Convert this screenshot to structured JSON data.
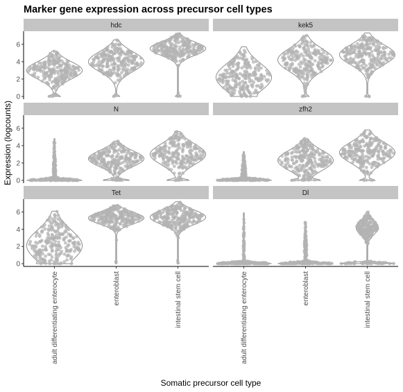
{
  "chart_data": {
    "type": "violin",
    "title": "Marker gene expression across precursor cell types",
    "xlabel": "Somatic precursor cell type",
    "ylabel": "Expression (logcounts)",
    "categories": [
      "adult differentiating enterocyte",
      "enteroblast",
      "intestinal stem cell"
    ],
    "ylim": [
      0,
      7.5
    ],
    "yticks": [
      0,
      2,
      4,
      6
    ],
    "facet_layout": {
      "rows": 3,
      "cols": 2,
      "free_y": false
    },
    "colors": {
      "outline": "#8c8c8c",
      "points": "#b3b3b3",
      "strip": "#c4c4c4"
    },
    "facets": [
      {
        "name": "hdc",
        "groups": [
          {
            "category": "adult differentiating enterocyte",
            "min": 0,
            "max": 5.2,
            "zeroFraction": 0.06,
            "peak": 3.0,
            "width": 0.3
          },
          {
            "category": "enteroblast",
            "min": 0,
            "max": 6.5,
            "zeroFraction": 0.04,
            "peak": 4.0,
            "width": 0.33
          },
          {
            "category": "intestinal stem cell",
            "min": 0,
            "max": 7.2,
            "zeroFraction": 0.03,
            "peak": 5.5,
            "width": 0.33
          }
        ]
      },
      {
        "name": "kek5",
        "groups": [
          {
            "category": "adult differentiating enterocyte",
            "min": 0,
            "max": 5.7,
            "zeroFraction": 0.03,
            "peak": 2.2,
            "width": 0.32
          },
          {
            "category": "enteroblast",
            "min": 0,
            "max": 7.0,
            "zeroFraction": 0.04,
            "peak": 4.2,
            "width": 0.33
          },
          {
            "category": "intestinal stem cell",
            "min": 0,
            "max": 7.3,
            "zeroFraction": 0.03,
            "peak": 4.8,
            "width": 0.33
          }
        ]
      },
      {
        "name": "N",
        "groups": [
          {
            "category": "adult differentiating enterocyte",
            "min": 0,
            "max": 4.8,
            "zeroFraction": 0.92,
            "peak": 0.8,
            "width": 0.05
          },
          {
            "category": "enteroblast",
            "min": 0,
            "max": 4.5,
            "zeroFraction": 0.15,
            "peak": 2.5,
            "width": 0.33
          },
          {
            "category": "intestinal stem cell",
            "min": 0,
            "max": 5.6,
            "zeroFraction": 0.12,
            "peak": 3.0,
            "width": 0.33
          }
        ]
      },
      {
        "name": "zfh2",
        "groups": [
          {
            "category": "adult differentiating enterocyte",
            "min": 0,
            "max": 3.3,
            "zeroFraction": 0.75,
            "peak": 0.8,
            "width": 0.06
          },
          {
            "category": "enteroblast",
            "min": 0,
            "max": 4.8,
            "zeroFraction": 0.12,
            "peak": 2.3,
            "width": 0.3
          },
          {
            "category": "intestinal stem cell",
            "min": 0,
            "max": 5.8,
            "zeroFraction": 0.08,
            "peak": 3.2,
            "width": 0.32
          }
        ]
      },
      {
        "name": "Tet",
        "groups": [
          {
            "category": "adult differentiating enterocyte",
            "min": 0,
            "max": 6.1,
            "zeroFraction": 0.04,
            "peak": 2.1,
            "width": 0.3
          },
          {
            "category": "enteroblast",
            "min": 0,
            "max": 6.8,
            "zeroFraction": 0.01,
            "peak": 5.3,
            "width": 0.33
          },
          {
            "category": "intestinal stem cell",
            "min": 0,
            "max": 7.2,
            "zeroFraction": 0.01,
            "peak": 5.4,
            "width": 0.33
          }
        ]
      },
      {
        "name": "Dl",
        "groups": [
          {
            "category": "adult differentiating enterocyte",
            "min": 0,
            "max": 5.9,
            "zeroFraction": 0.95,
            "peak": 0.5,
            "width": 0.02
          },
          {
            "category": "enteroblast",
            "min": 0,
            "max": 4.8,
            "zeroFraction": 0.85,
            "peak": 1.5,
            "width": 0.04
          },
          {
            "category": "intestinal stem cell",
            "min": 0,
            "max": 6.0,
            "zeroFraction": 0.55,
            "peak": 4.2,
            "width": 0.22
          }
        ]
      }
    ]
  }
}
